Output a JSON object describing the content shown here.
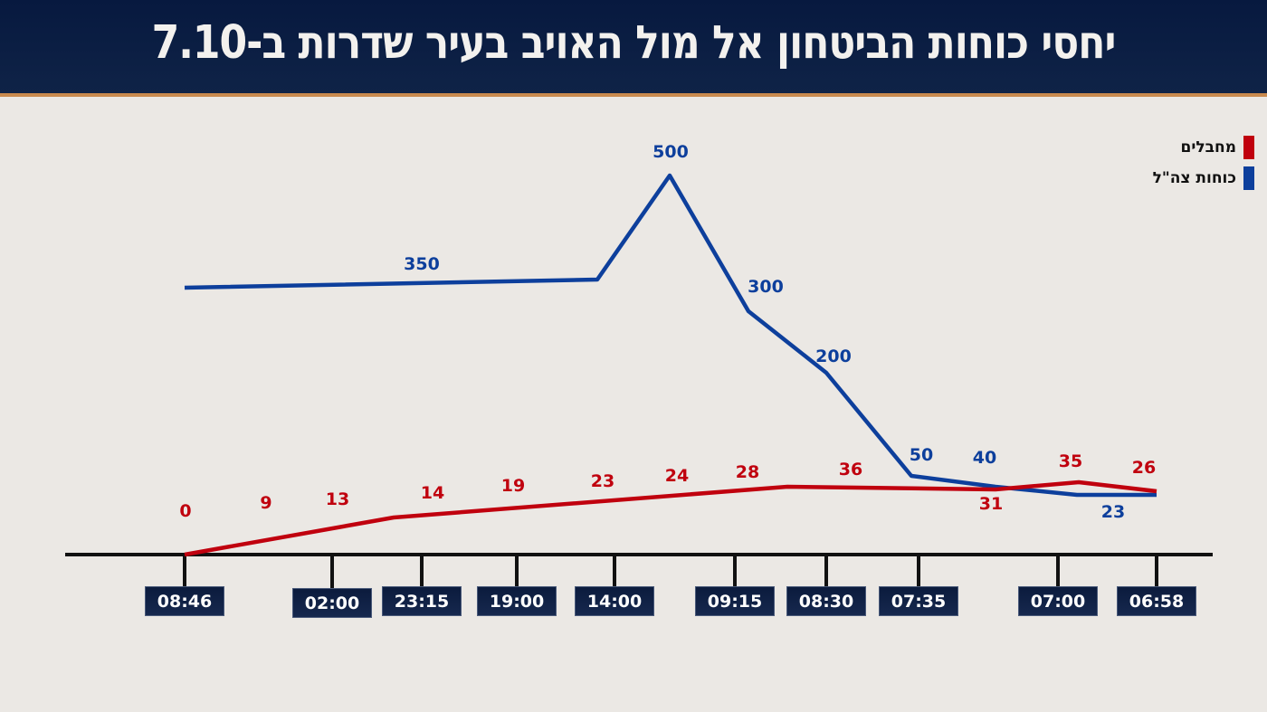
{
  "header": {
    "title": "יחסי כוחות הביטחון אל מול האויב בעיר שדרות ב-7.10"
  },
  "chart_data": {
    "type": "line",
    "title": "יחסי כוחות הביטחון אל מול האויב בעיר שדרות ב-7.10",
    "x_tick_labels": [
      "08:46",
      "02:00",
      "23:15",
      "19:00",
      "14:00",
      "09:15",
      "08:30",
      "07:35",
      "07:00",
      "06:58"
    ],
    "x_direction": "right-to-left (chronological from right)",
    "legend_position": "top-right",
    "grid": false,
    "series": [
      {
        "name": "מחבלים",
        "color": "#c0000e",
        "value_labels": [
          0,
          9,
          13,
          14,
          19,
          23,
          24,
          28,
          36,
          31,
          35,
          26
        ]
      },
      {
        "name": "כוחות צה\"ל",
        "color": "#0d3f9c",
        "value_labels": [
          350,
          500,
          300,
          200,
          50,
          40,
          23
        ]
      }
    ]
  },
  "colors": {
    "header_bg": "#0b1b3d",
    "header_rule": "#c98a4e",
    "background": "#ebe8e4",
    "axis": "#111111"
  }
}
